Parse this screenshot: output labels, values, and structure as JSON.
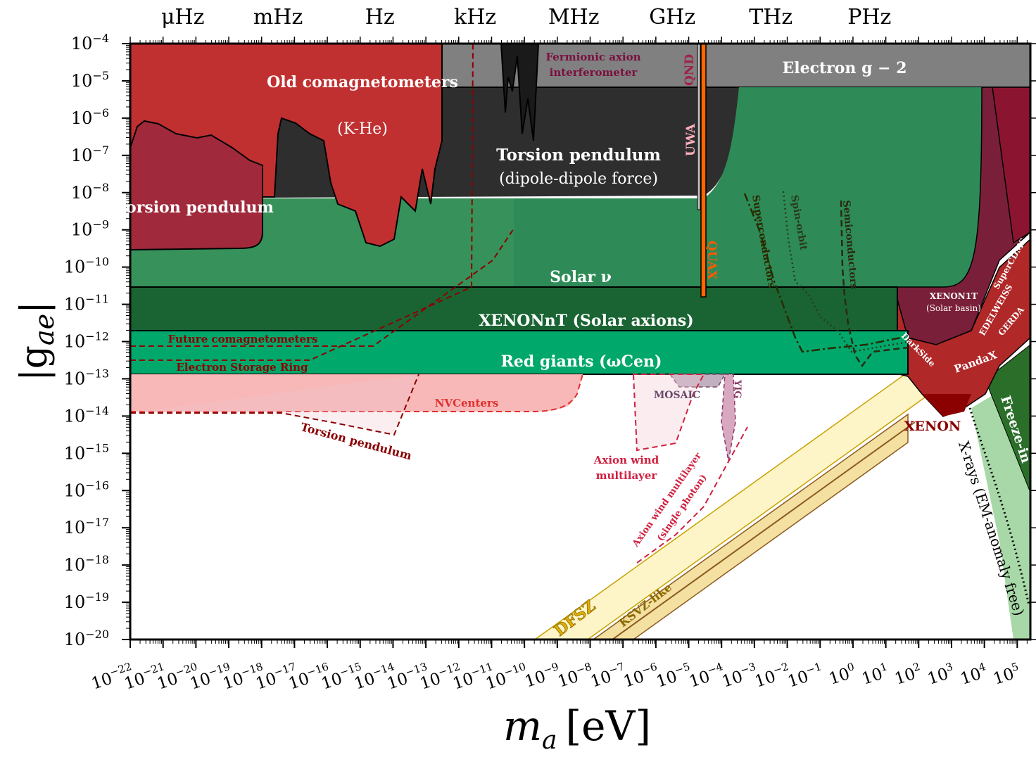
{
  "chart_data": {
    "type": "area",
    "xlabel": "m",
    "xlabel_sub": "a",
    "xlabel_unit": "[eV]",
    "ylabel": "|g",
    "ylabel_sub": "ae",
    "ylabel_end": "|",
    "x_scale": "log",
    "y_scale": "log",
    "xlim_exp": [
      -22,
      5.4
    ],
    "ylim_exp": [
      -20,
      -4
    ],
    "x_ticks": [
      -22,
      -21,
      -20,
      -19,
      -18,
      -17,
      -16,
      -15,
      -14,
      -13,
      -12,
      -11,
      -10,
      -9,
      -8,
      -7,
      -6,
      -5,
      -4,
      -3,
      -2,
      -1,
      0,
      1,
      2,
      3,
      4,
      5
    ],
    "y_ticks": [
      -4,
      -5,
      -6,
      -7,
      -8,
      -9,
      -10,
      -11,
      -12,
      -13,
      -14,
      -15,
      -16,
      -17,
      -18,
      -19,
      -20
    ],
    "top_axis": [
      {
        "label": "μHz",
        "x_exp": -20.4
      },
      {
        "label": "mHz",
        "x_exp": -17.5
      },
      {
        "label": "Hz",
        "x_exp": -14.4
      },
      {
        "label": "kHz",
        "x_exp": -11.5
      },
      {
        "label": "MHz",
        "x_exp": -8.5
      },
      {
        "label": "GHz",
        "x_exp": -5.5
      },
      {
        "label": "THz",
        "x_exp": -2.5
      },
      {
        "label": "PHz",
        "x_exp": 0.5
      }
    ],
    "regions": [
      {
        "name": "Torsion pendulum",
        "note": "(dipole-dipole force)",
        "color": "#2e2e2e"
      },
      {
        "name": "Electron g − 2",
        "color": "#808080",
        "y_min_exp": -5.17
      },
      {
        "name": "Solar ν",
        "color": "#2e8b57",
        "y_min_exp": -10.55
      },
      {
        "name": "XENONnT (Solar axions)",
        "color": "#1a6433",
        "y_range_exp": [
          -11.71,
          -10.55
        ]
      },
      {
        "name": "Red giants (ωCen)",
        "color": "#00a86b",
        "y_range_exp": [
          -12.88,
          -11.71
        ]
      },
      {
        "name": "Old comagnetometers",
        "note": "(K-He)",
        "color": "#c03030"
      },
      {
        "name": "Torsion pendulum",
        "color": "#a02a3c"
      },
      {
        "name": "NVCenters",
        "color": "#f8b8b8"
      },
      {
        "name": "XENON",
        "color": "#8b0000"
      },
      {
        "name": "Freeze-in",
        "color": "#2a6e2a"
      },
      {
        "name": "X-rays (EM-anomaly free)",
        "color": "#a8d8a8"
      }
    ],
    "bands": [
      {
        "name": "DFSZ",
        "color": "#fdf5c8"
      },
      {
        "name": "KSVZ-like",
        "color": "#f4e0a0"
      }
    ],
    "annotations": [
      "Fermionic axion",
      "interferometer",
      "QND",
      "UWA",
      "QUAX",
      "Superconductors",
      "Spin-orbit",
      "Semiconductors",
      "XENON1T",
      "(Solar basin)",
      "SuperCDMS",
      "EDELWEISS",
      "GERDA",
      "DarkSide",
      "PandaX",
      "Future comagnetometers",
      "Electron Storage Ring",
      "MOSAIC",
      "YIG",
      "Axion wind",
      "multilayer",
      "Axion wind multilayer",
      "(single photon)"
    ]
  }
}
